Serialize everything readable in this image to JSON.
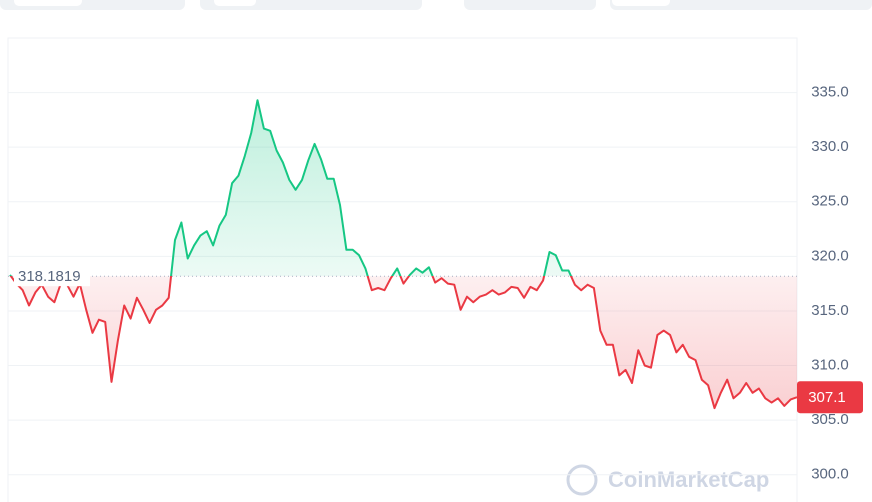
{
  "chart_data": {
    "type": "line",
    "values": [
      318.3,
      317.5,
      316.9,
      315.5,
      316.7,
      317.4,
      316.3,
      315.8,
      317.5,
      317.4,
      316.3,
      317.5,
      315.1,
      313.0,
      314.2,
      314.0,
      308.5,
      312.3,
      315.5,
      314.3,
      316.2,
      315.1,
      313.9,
      315.1,
      315.5,
      316.2,
      321.5,
      323.1,
      319.8,
      321.0,
      321.9,
      322.3,
      321.0,
      322.8,
      323.8,
      326.7,
      327.4,
      329.2,
      331.3,
      334.3,
      331.7,
      331.5,
      329.7,
      328.6,
      327.0,
      326.1,
      327.0,
      328.8,
      330.3,
      328.9,
      327.1,
      327.1,
      324.7,
      320.6,
      320.6,
      320.1,
      318.9,
      316.9,
      317.1,
      316.9,
      318.0,
      318.9,
      317.5,
      318.3,
      318.9,
      318.5,
      319.0,
      317.6,
      318.0,
      317.5,
      317.4,
      315.1,
      316.3,
      315.8,
      316.3,
      316.5,
      316.9,
      316.5,
      316.7,
      317.2,
      317.1,
      316.2,
      317.2,
      316.9,
      317.8,
      320.4,
      320.1,
      318.7,
      318.7,
      317.4,
      316.9,
      317.4,
      317.1,
      313.2,
      311.9,
      311.9,
      309.1,
      309.6,
      308.4,
      311.4,
      310.0,
      309.8,
      312.8,
      313.2,
      312.8,
      311.2,
      311.9,
      310.8,
      310.5,
      308.7,
      308.2,
      306.1,
      307.5,
      308.7,
      307.0,
      307.5,
      308.4,
      307.5,
      307.9,
      307.0,
      306.6,
      307.0,
      306.3,
      306.9,
      307.1
    ],
    "baseline": 318.1819,
    "current_price": 307.1,
    "up_color": "#16c784",
    "down_color": "#ea3943",
    "ylim": [
      297.5,
      340
    ],
    "yticks": [
      {
        "value": 300,
        "label": "300.0"
      },
      {
        "value": 305,
        "label": "305.0"
      },
      {
        "value": 310,
        "label": "310.0"
      },
      {
        "value": 315,
        "label": "315.0"
      },
      {
        "value": 320,
        "label": "320.0"
      },
      {
        "value": 325,
        "label": "325.0"
      },
      {
        "value": 330,
        "label": "330.0"
      },
      {
        "value": 335,
        "label": "335.0"
      }
    ],
    "grid": true,
    "watermark": "CoinMarketCap"
  }
}
